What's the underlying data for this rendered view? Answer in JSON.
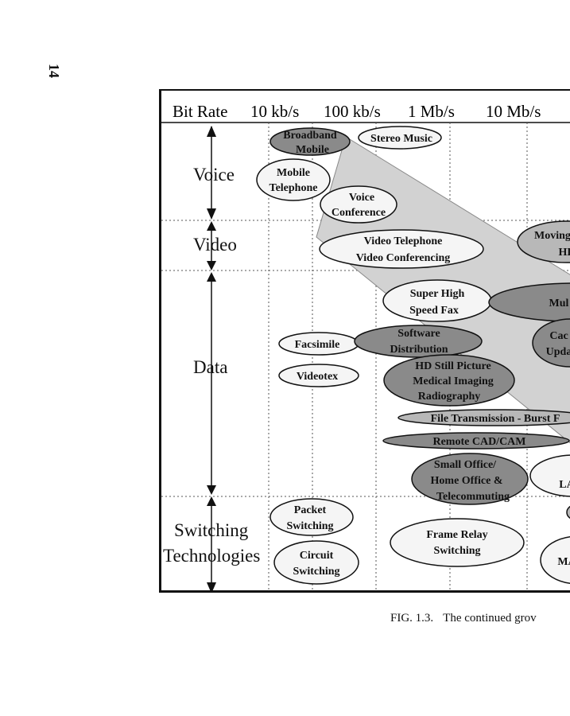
{
  "page": {
    "number": "14"
  },
  "figure": {
    "header": {
      "row_label": "Bit Rate",
      "rates": [
        "10 kb/s",
        "100 kb/s",
        "1 Mb/s",
        "10 Mb/s"
      ]
    },
    "categories": [
      "Voice",
      "Video",
      "Data",
      "Switching Technologies"
    ],
    "applications": {
      "broadband_mobile": [
        "Broadband",
        "Mobile"
      ],
      "stereo_music": [
        "Stereo Music"
      ],
      "mobile_telephone": [
        "Mobile",
        "Telephone"
      ],
      "voice_conference": [
        "Voice",
        "Conference"
      ],
      "video_telephone": [
        "Video Telephone",
        "Video Conferencing"
      ],
      "moving_hd": [
        "Moving",
        "HD"
      ],
      "super_high_speed_fax": [
        "Super High",
        "Speed Fax"
      ],
      "mul": [
        "Mul"
      ],
      "facsimile": [
        "Facsimile"
      ],
      "software_distribution": [
        "Software",
        "Distribution"
      ],
      "cache_update": [
        "Cac",
        "Upda"
      ],
      "videotex": [
        "Videotex"
      ],
      "hd_still_picture": [
        "HD Still Picture",
        "Medical Imaging",
        "Radiography"
      ],
      "file_transmission": [
        "File Transmission - Burst F"
      ],
      "remote_cad_cam": [
        "Remote CAD/CAM"
      ],
      "small_office": [
        "Small Office/",
        "Home Office &",
        "Telecommuting"
      ],
      "lan": [
        "LA"
      ],
      "packet_switching": [
        "Packet",
        "Switching"
      ],
      "frame_relay": [
        "Frame Relay",
        "Switching"
      ],
      "circuit_switching": [
        "Circuit",
        "Switching"
      ],
      "man": [
        "MA"
      ]
    }
  },
  "caption": {
    "label": "FIG. 1.3.",
    "text": "The continued grov"
  }
}
